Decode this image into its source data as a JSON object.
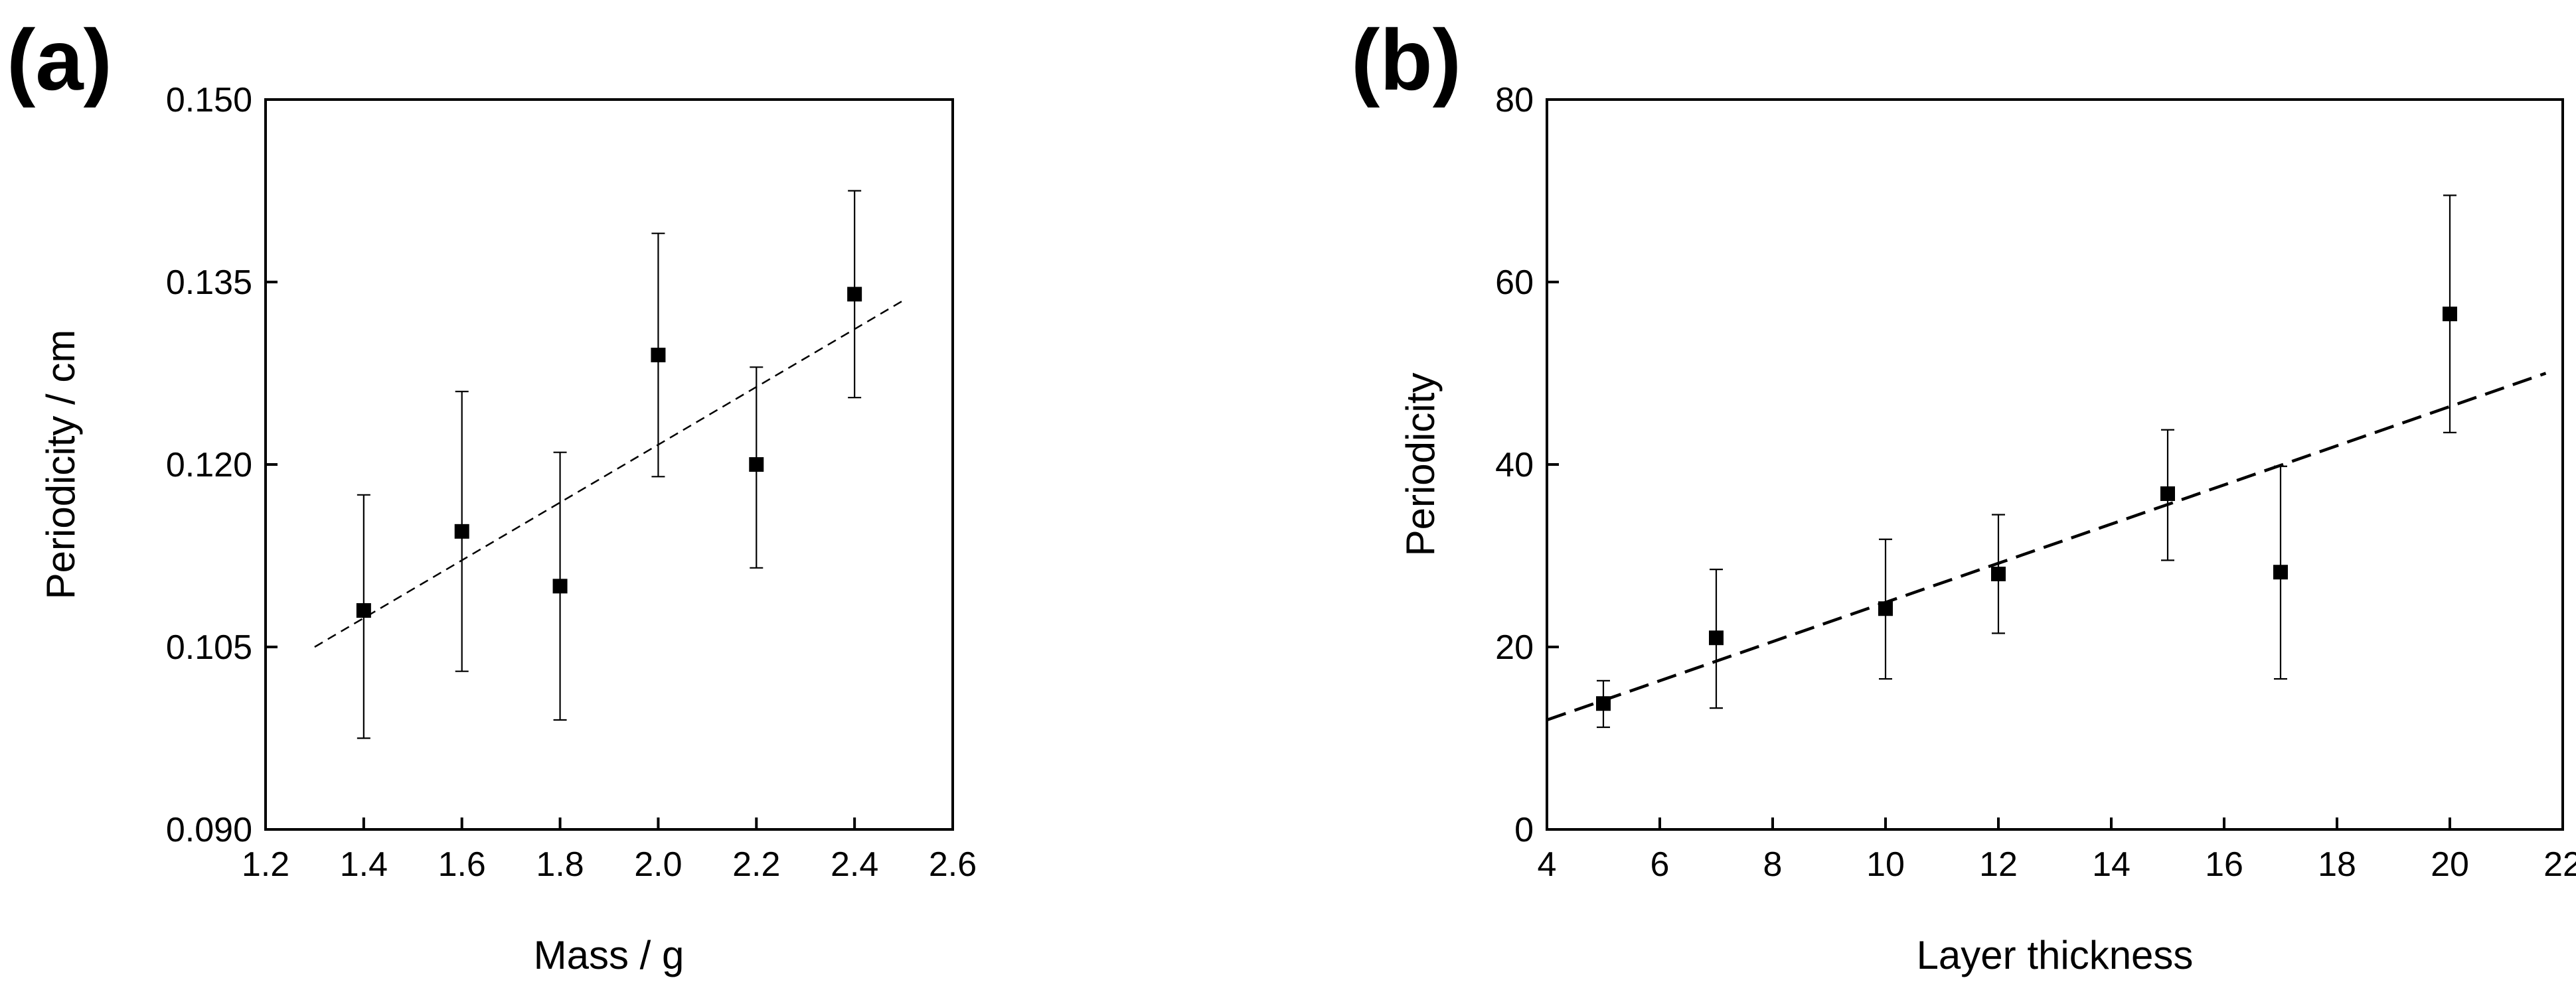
{
  "chart_data": [
    {
      "panel_label": "(a)",
      "type": "scatter",
      "xlabel": "Mass / g",
      "ylabel": "Periodicity / cm",
      "xlim": [
        1.2,
        2.6
      ],
      "ylim": [
        0.09,
        0.15
      ],
      "xticks": [
        1.2,
        1.4,
        1.6,
        1.8,
        2.0,
        2.2,
        2.4,
        2.6
      ],
      "yticks": [
        0.09,
        0.105,
        0.12,
        0.135,
        0.15
      ],
      "xtick_labels": [
        "1.2",
        "1.4",
        "1.6",
        "1.8",
        "2.0",
        "2.2",
        "2.4",
        "2.6"
      ],
      "ytick_labels": [
        "0.090",
        "0.105",
        "0.120",
        "0.135",
        "0.150"
      ],
      "grid": false,
      "series": [
        {
          "name": "Periodicity",
          "marker": "square",
          "x": [
            1.4,
            1.6,
            1.8,
            2.0,
            2.2,
            2.4
          ],
          "y": [
            0.108,
            0.1145,
            0.11,
            0.129,
            0.12,
            0.134
          ],
          "err_low": [
            0.0975,
            0.103,
            0.099,
            0.119,
            0.1115,
            0.1255
          ],
          "err_high": [
            0.1175,
            0.126,
            0.121,
            0.139,
            0.128,
            0.1425
          ]
        }
      ],
      "fit_line": {
        "style": "dashed",
        "x": [
          1.3,
          2.5
        ],
        "y": [
          0.105,
          0.1335
        ]
      }
    },
    {
      "panel_label": "(b)",
      "type": "scatter",
      "xlabel": "Layer thickness",
      "ylabel": "Periodicity",
      "xlim": [
        4,
        22
      ],
      "ylim": [
        0,
        80
      ],
      "xticks": [
        4,
        6,
        8,
        10,
        12,
        14,
        16,
        18,
        20,
        22
      ],
      "yticks": [
        0,
        20,
        40,
        60,
        80
      ],
      "xtick_labels": [
        "4",
        "6",
        "8",
        "10",
        "12",
        "14",
        "16",
        "18",
        "20",
        "22"
      ],
      "ytick_labels": [
        "0",
        "20",
        "40",
        "60",
        "80"
      ],
      "grid": false,
      "series": [
        {
          "name": "Periodicity",
          "marker": "square",
          "x": [
            5,
            7,
            10,
            12,
            15,
            17,
            20
          ],
          "y": [
            13.8,
            21,
            24.2,
            28,
            36.8,
            28.2,
            56.5
          ],
          "err_low": [
            11.2,
            13.3,
            16.5,
            21.5,
            29.5,
            16.5,
            43.5
          ],
          "err_high": [
            16.3,
            28.5,
            31.8,
            34.5,
            43.8,
            39.8,
            69.5
          ]
        }
      ],
      "fit_line": {
        "style": "dashed",
        "x": [
          4,
          21.7
        ],
        "y": [
          12,
          50
        ]
      }
    }
  ]
}
